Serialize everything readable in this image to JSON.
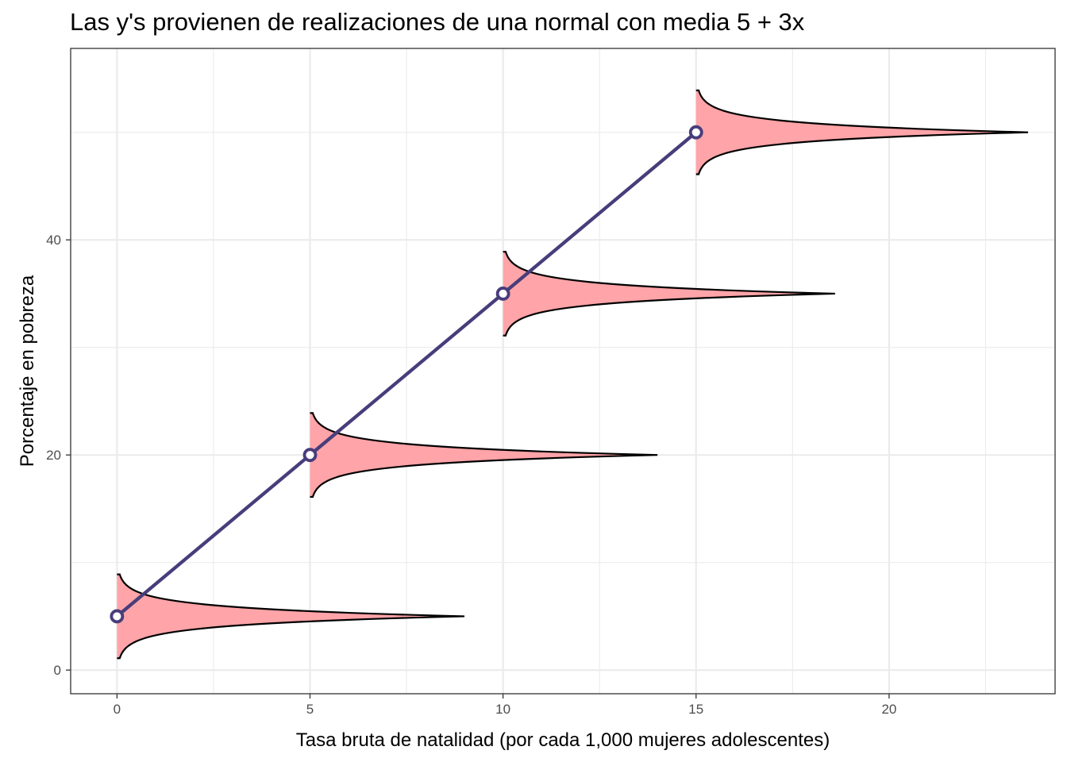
{
  "chart_data": {
    "type": "line",
    "title": "Las y's provienen de realizaciones de una normal con media 5 + 3x",
    "xlabel": "Tasa bruta de natalidad (por cada 1,000 mujeres adolescentes)",
    "ylabel": "Porcentaje en pobreza",
    "xlim": [
      -1.2,
      24.3
    ],
    "ylim": [
      -2.2,
      57.8
    ],
    "x_ticks": [
      0,
      5,
      10,
      15,
      20
    ],
    "y_ticks": [
      0,
      20,
      40
    ],
    "x_tick_labels": [
      "0",
      "5",
      "10",
      "15",
      "20"
    ],
    "y_tick_labels": [
      "0",
      "20",
      "40"
    ],
    "grid": true,
    "series": [
      {
        "x": [
          0,
          5,
          10,
          15
        ],
        "y": [
          5,
          20,
          35,
          50
        ],
        "color": "#483d7b",
        "markers": "open-circle"
      }
    ],
    "densities": {
      "centers_x": [
        0,
        5,
        10,
        15
      ],
      "means_y": [
        5,
        20,
        35,
        50
      ],
      "peak_width_x": [
        9,
        9,
        8.6,
        8.6
      ],
      "y_range": 3.9,
      "fill": "#ffa4a8",
      "stroke": "#000000"
    }
  }
}
